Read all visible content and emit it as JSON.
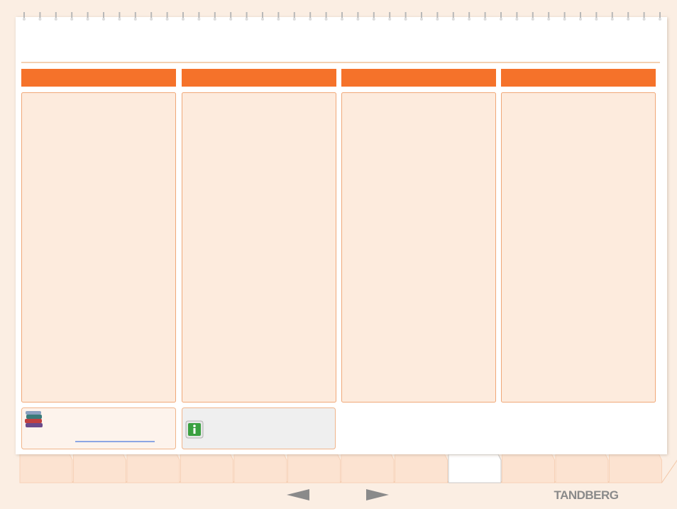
{
  "brand": "TANDBERG"
}
